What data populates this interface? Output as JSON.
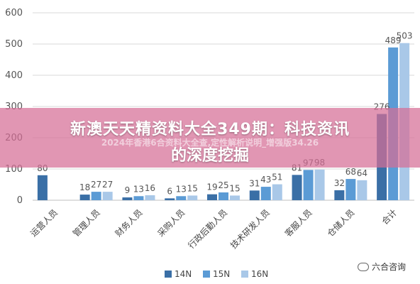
{
  "chart_data": {
    "type": "bar",
    "categories": [
      "运营人员",
      "管理人员",
      "财务人员",
      "采购人员",
      "行政后勤人员",
      "技术研发人员",
      "客服人员",
      "仓储人员",
      "合计"
    ],
    "series": [
      {
        "name": "14N",
        "color": "#3a6fa6",
        "values": [
          80,
          18,
          9,
          6,
          19,
          31,
          81,
          32,
          276
        ]
      },
      {
        "name": "15N",
        "color": "#5b9bd5",
        "values": [
          null,
          27,
          13,
          13,
          25,
          43,
          97,
          68,
          489
        ]
      },
      {
        "name": "16N",
        "color": "#a9c8e8",
        "values": [
          null,
          27,
          16,
          15,
          15,
          51,
          98,
          64,
          503
        ]
      }
    ],
    "yticks": [
      0,
      100,
      200,
      300,
      400,
      500,
      600
    ],
    "ylim": [
      0,
      600
    ],
    "grid": true,
    "legend_position": "bottom"
  },
  "overlay": {
    "title_line1": "新澳天天精资料大全349期：科技资讯",
    "title_line2": "的深度挖掘",
    "subtitle": "2024年香港6合资料大全查,定性解析说明_增强版34.26"
  },
  "watermark": {
    "text": "六合咨询"
  }
}
